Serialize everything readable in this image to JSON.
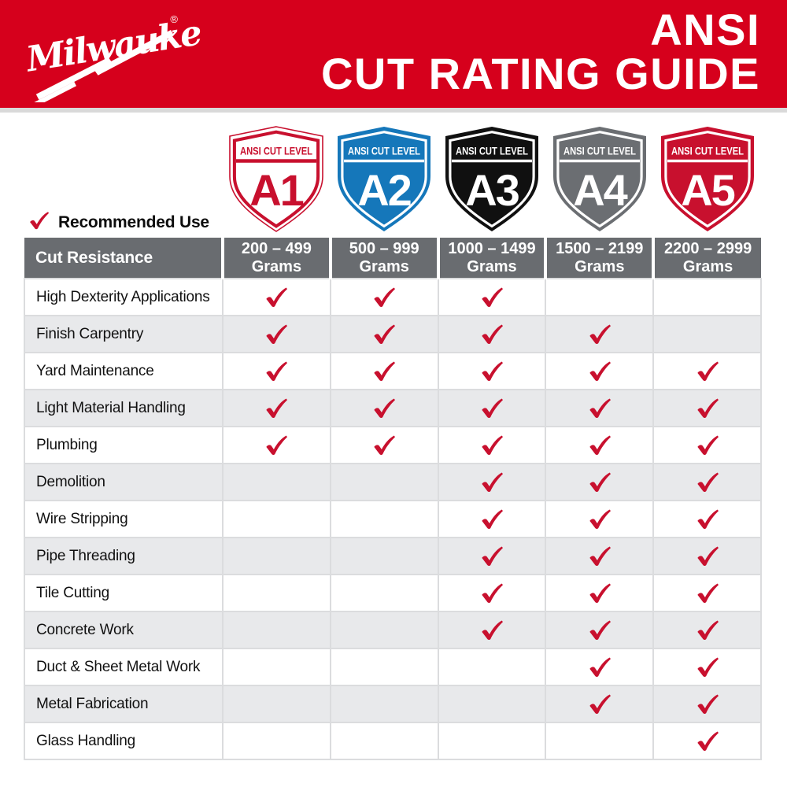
{
  "brand": {
    "logo_text": "Milwaukee",
    "registered": "®"
  },
  "header": {
    "title_line1": "ANSI",
    "title_line2": "CUT RATING GUIDE",
    "bg_color": "#D6001C"
  },
  "shields": [
    {
      "level": "A1",
      "banner": "ANSI CUT LEVEL",
      "bg": "#FFFFFF",
      "accent": "#C8102E",
      "style": "outline"
    },
    {
      "level": "A2",
      "banner": "ANSI CUT LEVEL",
      "bg": "#1577BA",
      "accent": "#FFFFFF",
      "style": "solid"
    },
    {
      "level": "A3",
      "banner": "ANSI CUT LEVEL",
      "bg": "#101010",
      "accent": "#FFFFFF",
      "style": "solid"
    },
    {
      "level": "A4",
      "banner": "ANSI CUT LEVEL",
      "bg": "#6B6E72",
      "accent": "#FFFFFF",
      "style": "solid"
    },
    {
      "level": "A5",
      "banner": "ANSI CUT LEVEL",
      "bg": "#C8102E",
      "accent": "#FFFFFF",
      "style": "solid"
    }
  ],
  "legend": {
    "label": "Recommended Use"
  },
  "table": {
    "first_column_header": "Cut Resistance",
    "columns": [
      {
        "range": "200 – 499",
        "unit": "Grams"
      },
      {
        "range": "500 – 999",
        "unit": "Grams"
      },
      {
        "range": "1000 – 1499",
        "unit": "Grams"
      },
      {
        "range": "1500 – 2199",
        "unit": "Grams"
      },
      {
        "range": "2200 – 2999",
        "unit": "Grams"
      }
    ],
    "rows": [
      {
        "label": "High Dexterity Applications",
        "checks": [
          true,
          true,
          true,
          false,
          false
        ]
      },
      {
        "label": "Finish Carpentry",
        "checks": [
          true,
          true,
          true,
          true,
          false
        ]
      },
      {
        "label": "Yard Maintenance",
        "checks": [
          true,
          true,
          true,
          true,
          true
        ]
      },
      {
        "label": "Light Material Handling",
        "checks": [
          true,
          true,
          true,
          true,
          true
        ]
      },
      {
        "label": "Plumbing",
        "checks": [
          true,
          true,
          true,
          true,
          true
        ]
      },
      {
        "label": "Demolition",
        "checks": [
          false,
          false,
          true,
          true,
          true
        ]
      },
      {
        "label": "Wire Stripping",
        "checks": [
          false,
          false,
          true,
          true,
          true
        ]
      },
      {
        "label": "Pipe Threading",
        "checks": [
          false,
          false,
          true,
          true,
          true
        ]
      },
      {
        "label": "Tile Cutting",
        "checks": [
          false,
          false,
          true,
          true,
          true
        ]
      },
      {
        "label": "Concrete Work",
        "checks": [
          false,
          false,
          true,
          true,
          true
        ]
      },
      {
        "label": "Duct & Sheet Metal Work",
        "checks": [
          false,
          false,
          false,
          true,
          true
        ]
      },
      {
        "label": "Metal Fabrication",
        "checks": [
          false,
          false,
          false,
          true,
          true
        ]
      },
      {
        "label": "Glass Handling",
        "checks": [
          false,
          false,
          false,
          false,
          true
        ]
      }
    ]
  },
  "colors": {
    "banner_red": "#D6001C",
    "check_red": "#C8102E",
    "table_header_gray": "#696C70",
    "alt_row_gray": "#E8E9EB",
    "grid_line": "#DBDCDE"
  }
}
